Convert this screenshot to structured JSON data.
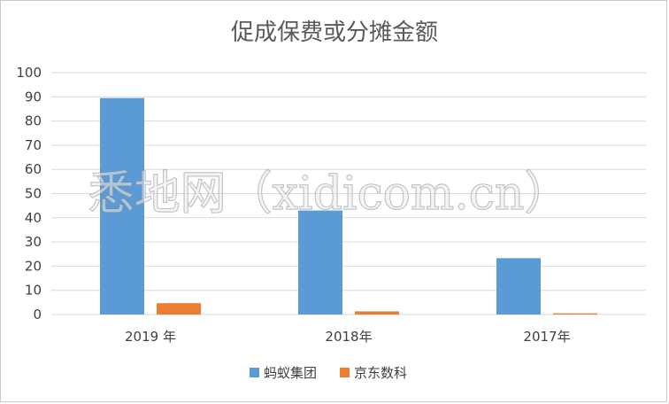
{
  "chart_data": {
    "type": "bar",
    "title": "促成保费或分摊金额",
    "categories": [
      "2019 年",
      "2018年",
      "2017年"
    ],
    "series": [
      {
        "name": "蚂蚁集团",
        "color": "#5B9BD5",
        "values": [
          89.5,
          43,
          23.3
        ]
      },
      {
        "name": "京东数科",
        "color": "#ED7D31",
        "values": [
          4.7,
          1.3,
          0.5
        ]
      }
    ],
    "ylim": [
      0,
      100
    ],
    "yticks": [
      0,
      10,
      20,
      30,
      40,
      50,
      60,
      70,
      80,
      90,
      100
    ],
    "grid": true,
    "legend": "bottom"
  },
  "watermark": "悉地网（xidicom.cn）"
}
